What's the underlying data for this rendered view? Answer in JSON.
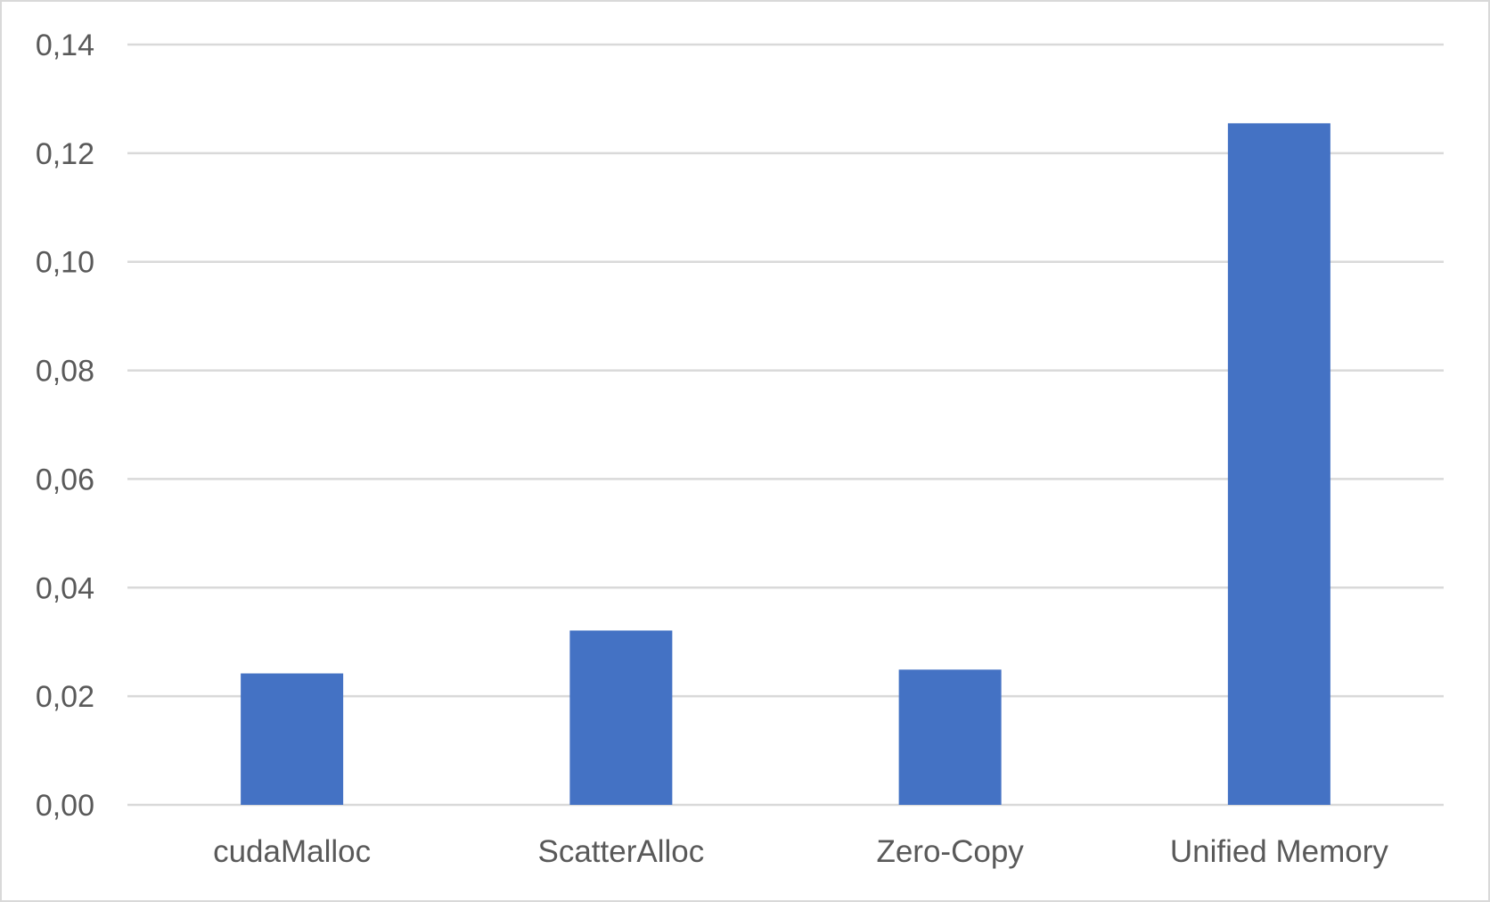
{
  "chart_data": {
    "type": "bar",
    "title": "",
    "xlabel": "",
    "ylabel": "",
    "categories": [
      "cudaMalloc",
      "ScatterAlloc",
      "Zero-Copy",
      "Unified Memory"
    ],
    "values": [
      0.0242,
      0.0321,
      0.0249,
      0.1255
    ],
    "ylim": [
      0,
      0.14
    ],
    "yticks": [
      "0,00",
      "0,02",
      "0,04",
      "0,06",
      "0,08",
      "0,10",
      "0,12",
      "0,14"
    ],
    "grid": true,
    "legend": "none",
    "bar_color": "#4472c4"
  }
}
